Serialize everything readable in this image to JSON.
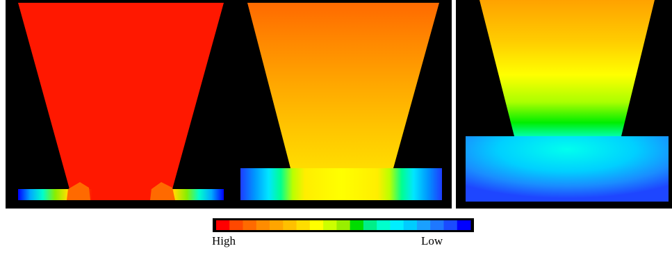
{
  "figure": {
    "panels": [
      {
        "id": "panel-1",
        "background": "#000000"
      },
      {
        "id": "panel-2",
        "background": "#000000"
      },
      {
        "id": "panel-3",
        "background": "#000000"
      }
    ]
  },
  "colorbar": {
    "high_label": "High",
    "low_label": "Low",
    "colors": [
      "#ff0000",
      "#ff4800",
      "#ff6a00",
      "#ff8c00",
      "#ffa500",
      "#ffc000",
      "#ffdd00",
      "#ffff00",
      "#ccff00",
      "#99ee00",
      "#00dd00",
      "#00ee88",
      "#00ffcc",
      "#00eeff",
      "#00ccff",
      "#1aa0ff",
      "#1e78ff",
      "#1a4bff",
      "#0000ff"
    ]
  }
}
